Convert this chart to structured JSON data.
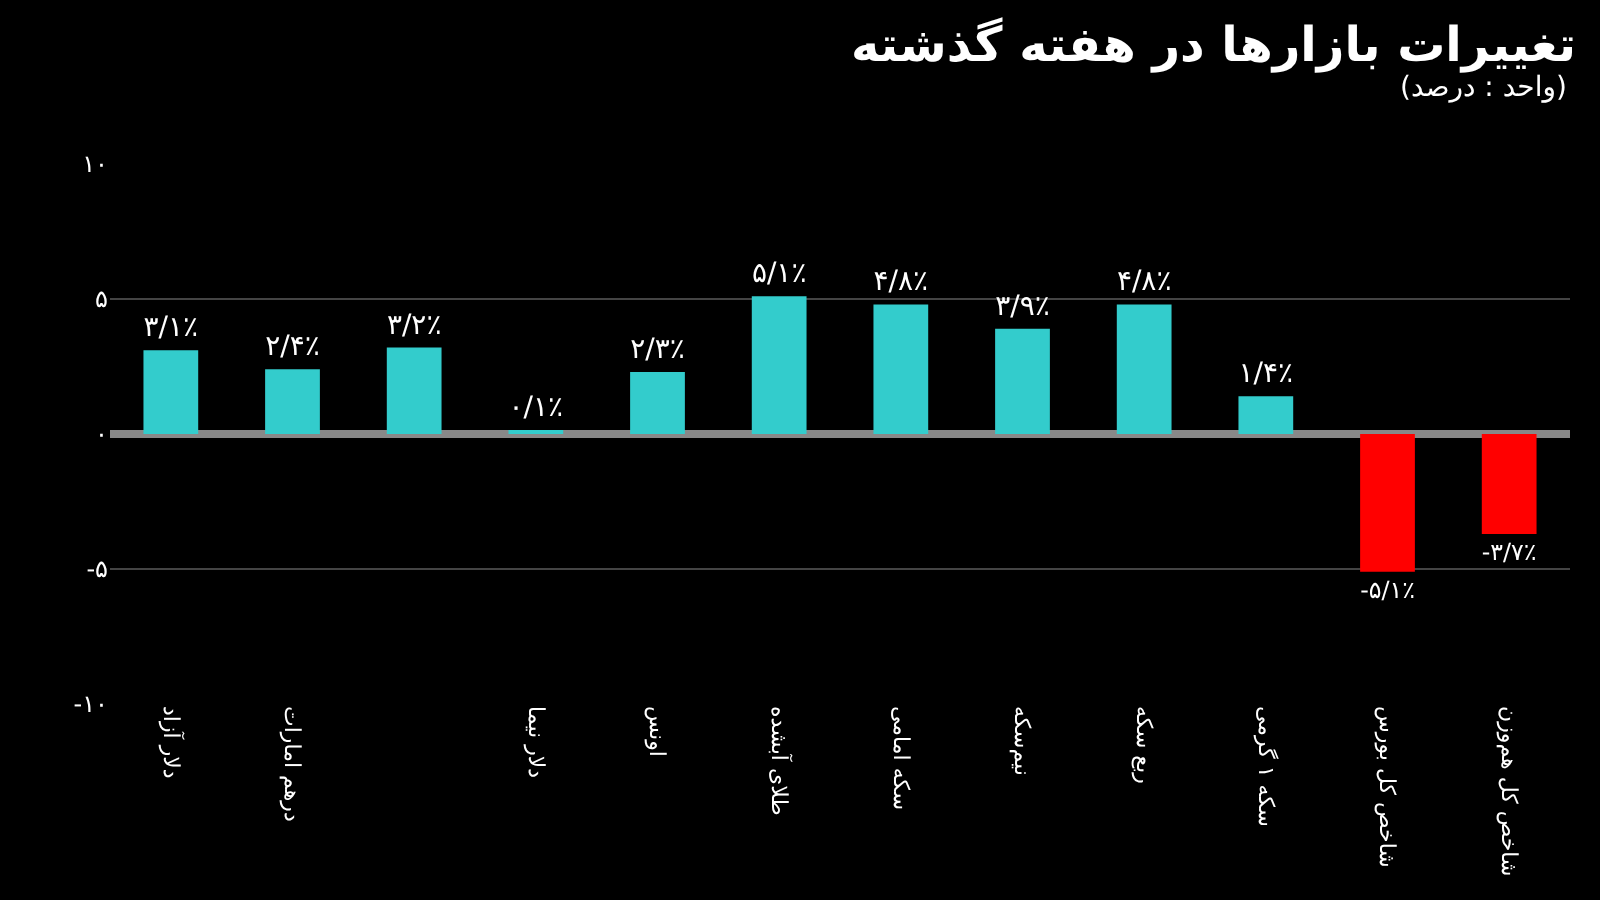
{
  "chart_data": {
    "type": "bar",
    "title": "تغییرات بازارها در هفته گذشته",
    "subtitle": "(واحد : درصد)",
    "categories": [
      "دلار آزاد",
      "درهم امارات",
      null,
      "دلار نیما",
      "اونس",
      "طلای آبشده",
      "سکه امامی",
      "نیم‌سکه",
      "ربع سکه",
      "سکه ۱ گرمی",
      "شاخص کل بورس",
      "شاخص کل هم‌وزن"
    ],
    "values": [
      3.1,
      2.4,
      3.2,
      0.1,
      2.3,
      5.1,
      4.8,
      3.9,
      4.8,
      1.4,
      -5.1,
      -3.7
    ],
    "value_labels": [
      "۳/۱٪",
      "۲/۴٪",
      "۳/۲٪",
      "۰/۱٪",
      "۲/۳٪",
      "۵/۱٪",
      "۴/۸٪",
      "۳/۹٪",
      "۴/۸٪",
      "۱/۴٪",
      "-۵/۱٪",
      "-۳/۷٪"
    ],
    "colors": [
      "#33cccc",
      "#33cccc",
      "#33cccc",
      "#33cccc",
      "#33cccc",
      "#33cccc",
      "#33cccc",
      "#33cccc",
      "#33cccc",
      "#33cccc",
      "#ff0000",
      "#ff0000"
    ],
    "ylim": [
      -10,
      10
    ],
    "yticks": [
      {
        "value": -10,
        "label": "-۱۰"
      },
      {
        "value": -5,
        "label": "-۵"
      },
      {
        "value": 0,
        "label": "۰"
      },
      {
        "value": 5,
        "label": "۵"
      },
      {
        "value": 10,
        "label": "۱۰"
      }
    ],
    "grid": "y"
  }
}
